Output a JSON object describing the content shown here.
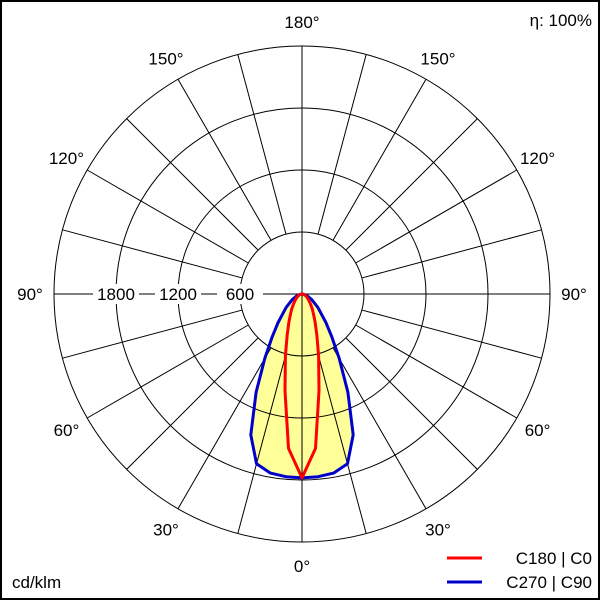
{
  "chart_data": {
    "type": "polar",
    "efficiency_label": "η: 100%",
    "unit_label": "cd/klm",
    "radial_ticks": [
      600,
      1200,
      1800,
      2400
    ],
    "radial_tick_labels": [
      "600",
      "1200",
      "1800"
    ],
    "rmax": 2400,
    "angle_labels": [
      {
        "angle": 180,
        "text": "180°"
      },
      {
        "angle": 150,
        "text": "150°"
      },
      {
        "angle": 120,
        "text": "120°"
      },
      {
        "angle": 90,
        "text": "90°"
      },
      {
        "angle": 60,
        "text": "60°"
      },
      {
        "angle": 30,
        "text": "30°"
      },
      {
        "angle": 0,
        "text": "0°"
      }
    ],
    "spoke_step_deg": 15,
    "gamma": [
      0,
      5,
      10,
      15,
      20,
      25,
      30,
      35,
      40,
      50,
      60,
      70,
      80,
      90
    ],
    "series": [
      {
        "name": "C180 | C0",
        "color": "#ff0000",
        "values": [
          1780,
          1500,
          950,
          620,
          420,
          300,
          220,
          170,
          130,
          80,
          50,
          30,
          15,
          0
        ]
      },
      {
        "name": "C270 | C90",
        "color": "#0000cc",
        "values": [
          1780,
          1775,
          1760,
          1700,
          1450,
          1050,
          720,
          500,
          360,
          200,
          110,
          55,
          20,
          0
        ]
      }
    ],
    "fill_color": "#ffff99"
  }
}
